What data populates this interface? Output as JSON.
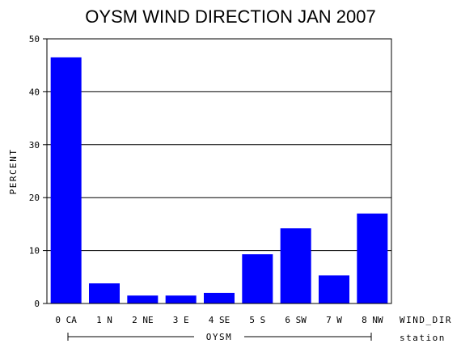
{
  "chart_data": {
    "type": "bar",
    "title": "OYSM WIND DIRECTION JAN 2007",
    "ylabel": "PERCENT",
    "xlabel": "WIND_DIR",
    "group_axis_label": "station",
    "group_name": "OYSM",
    "ylim": [
      0,
      50
    ],
    "yticks": [
      0,
      10,
      20,
      30,
      40,
      50
    ],
    "grid": true,
    "bar_color": "#0000ff",
    "categories": [
      "0 CA",
      "1 N",
      "2 NE",
      "3 E",
      "4 SE",
      "5 S",
      "6 SW",
      "7 W",
      "8 NW"
    ],
    "values": [
      46.5,
      3.8,
      1.5,
      1.5,
      2.0,
      9.3,
      14.2,
      5.3,
      17.0
    ]
  }
}
